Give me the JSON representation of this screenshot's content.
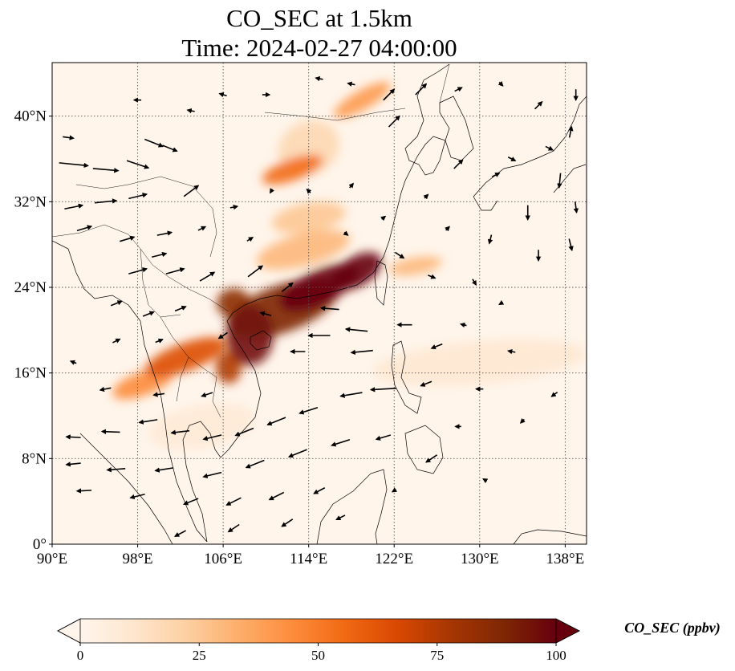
{
  "title": {
    "line1": "CO_SEC at 1.5km",
    "line2": "Time: 2024-02-27 04:00:00"
  },
  "map": {
    "lon_range": [
      90,
      140
    ],
    "lat_range": [
      0,
      40
    ],
    "lon_ticks": [
      {
        "value": 90,
        "label": "90°E"
      },
      {
        "value": 98,
        "label": "98°E"
      },
      {
        "value": 106,
        "label": "106°E"
      },
      {
        "value": 114,
        "label": "114°E"
      },
      {
        "value": 122,
        "label": "122°E"
      },
      {
        "value": 130,
        "label": "130°E"
      },
      {
        "value": 138,
        "label": "138°E"
      }
    ],
    "lat_ticks": [
      {
        "value": 0,
        "label": "0°"
      },
      {
        "value": 8,
        "label": "8°N"
      },
      {
        "value": 16,
        "label": "16°N"
      },
      {
        "value": 24,
        "label": "24°N"
      },
      {
        "value": 32,
        "label": "32°N"
      },
      {
        "value": 40,
        "label": "40°N"
      }
    ],
    "gridlines": true,
    "concentration_plumes": [
      {
        "lon": 111.5,
        "lat": 22.0,
        "rx": 5.5,
        "ry": 2.2,
        "rot": -20,
        "value": 90
      },
      {
        "lon": 115.0,
        "lat": 24.0,
        "rx": 4.0,
        "ry": 1.6,
        "rot": -25,
        "value": 100
      },
      {
        "lon": 108.5,
        "lat": 19.5,
        "rx": 2.2,
        "ry": 2.8,
        "rot": 0,
        "value": 95
      },
      {
        "lon": 118.5,
        "lat": 25.5,
        "rx": 2.6,
        "ry": 1.4,
        "rot": -30,
        "value": 100
      },
      {
        "lon": 107.0,
        "lat": 22.5,
        "rx": 1.6,
        "ry": 1.4,
        "rot": 0,
        "value": 85
      },
      {
        "lon": 102.5,
        "lat": 17.5,
        "rx": 4.0,
        "ry": 1.3,
        "rot": -20,
        "value": 65
      },
      {
        "lon": 98.5,
        "lat": 15.0,
        "rx": 3.0,
        "ry": 1.1,
        "rot": -20,
        "value": 45
      },
      {
        "lon": 106.5,
        "lat": 16.5,
        "rx": 1.2,
        "ry": 1.5,
        "rot": 0,
        "value": 75
      },
      {
        "lon": 113.5,
        "lat": 27.5,
        "rx": 4.5,
        "ry": 1.5,
        "rot": -15,
        "value": 30
      },
      {
        "lon": 112.5,
        "lat": 35.0,
        "rx": 3.0,
        "ry": 1.0,
        "rot": -20,
        "value": 55
      },
      {
        "lon": 114.0,
        "lat": 30.5,
        "rx": 3.5,
        "ry": 1.4,
        "rot": -10,
        "value": 25
      },
      {
        "lon": 119.0,
        "lat": 41.5,
        "rx": 3.0,
        "ry": 0.9,
        "rot": -30,
        "value": 40
      },
      {
        "lon": 114.0,
        "lat": 37.0,
        "rx": 3.0,
        "ry": 2.5,
        "rot": -30,
        "value": 18
      },
      {
        "lon": 104.0,
        "lat": 11.0,
        "rx": 5.0,
        "ry": 2.0,
        "rot": -10,
        "value": 8
      },
      {
        "lon": 130.0,
        "lat": 17.0,
        "rx": 10.0,
        "ry": 2.0,
        "rot": -5,
        "value": 10
      },
      {
        "lon": 124.0,
        "lat": 26.0,
        "rx": 2.5,
        "ry": 0.8,
        "rot": -10,
        "value": 30
      }
    ],
    "wind_vectors": [
      {
        "lon": 91.5,
        "lat": 38.0,
        "u": 1.5,
        "v": -0.2
      },
      {
        "lon": 92.0,
        "lat": 35.5,
        "u": 4.0,
        "v": -0.4
      },
      {
        "lon": 95.0,
        "lat": 35.0,
        "u": 3.5,
        "v": -0.3
      },
      {
        "lon": 98.0,
        "lat": 35.5,
        "u": 3.0,
        "v": -1.0
      },
      {
        "lon": 99.5,
        "lat": 37.5,
        "u": 2.5,
        "v": -1.0
      },
      {
        "lon": 101.0,
        "lat": 37.0,
        "u": 2.0,
        "v": -0.8
      },
      {
        "lon": 103.0,
        "lat": 33.0,
        "u": 2.0,
        "v": 1.5
      },
      {
        "lon": 92.0,
        "lat": 31.5,
        "u": 2.5,
        "v": 0.5
      },
      {
        "lon": 95.0,
        "lat": 32.0,
        "u": 3.0,
        "v": 0.3
      },
      {
        "lon": 98.0,
        "lat": 32.5,
        "u": 2.5,
        "v": 0.6
      },
      {
        "lon": 93.0,
        "lat": 29.5,
        "u": 2.0,
        "v": 0.6
      },
      {
        "lon": 97.0,
        "lat": 28.5,
        "u": 2.0,
        "v": 0.6
      },
      {
        "lon": 100.5,
        "lat": 29.0,
        "u": 2.0,
        "v": 0.4
      },
      {
        "lon": 98.0,
        "lat": 25.5,
        "u": 2.5,
        "v": 0.7
      },
      {
        "lon": 101.5,
        "lat": 25.5,
        "u": 2.5,
        "v": 0.7
      },
      {
        "lon": 104.5,
        "lat": 25.0,
        "u": 2.0,
        "v": 1.2
      },
      {
        "lon": 100.0,
        "lat": 27.0,
        "u": 2.0,
        "v": 0.5
      },
      {
        "lon": 109.0,
        "lat": 25.5,
        "u": 2.0,
        "v": 1.5
      },
      {
        "lon": 96.0,
        "lat": 22.5,
        "u": 1.5,
        "v": 0.6
      },
      {
        "lon": 99.0,
        "lat": 21.5,
        "u": 1.5,
        "v": 0.6
      },
      {
        "lon": 102.0,
        "lat": 22.0,
        "u": 1.5,
        "v": 0.6
      },
      {
        "lon": 112.0,
        "lat": 24.0,
        "u": 1.5,
        "v": 1.2
      },
      {
        "lon": 116.0,
        "lat": 22.0,
        "u": -2.5,
        "v": 0.2
      },
      {
        "lon": 115.0,
        "lat": 19.5,
        "u": -3.0,
        "v": 0.0
      },
      {
        "lon": 118.5,
        "lat": 20.0,
        "u": -3.0,
        "v": 0.3
      },
      {
        "lon": 119.0,
        "lat": 18.0,
        "u": -3.0,
        "v": -0.3
      },
      {
        "lon": 113.0,
        "lat": 18.0,
        "u": -2.0,
        "v": 0.0
      },
      {
        "lon": 121.0,
        "lat": 14.5,
        "u": -3.5,
        "v": -0.2
      },
      {
        "lon": 118.0,
        "lat": 14.0,
        "u": -3.0,
        "v": -0.5
      },
      {
        "lon": 114.0,
        "lat": 12.5,
        "u": -2.5,
        "v": -0.8
      },
      {
        "lon": 111.0,
        "lat": 11.5,
        "u": -2.5,
        "v": -1.0
      },
      {
        "lon": 108.0,
        "lat": 10.5,
        "u": -2.5,
        "v": -1.0
      },
      {
        "lon": 105.0,
        "lat": 10.0,
        "u": -2.5,
        "v": -0.6
      },
      {
        "lon": 102.0,
        "lat": 10.5,
        "u": -2.5,
        "v": -0.3
      },
      {
        "lon": 99.0,
        "lat": 11.5,
        "u": -2.5,
        "v": -0.4
      },
      {
        "lon": 95.5,
        "lat": 10.5,
        "u": -2.5,
        "v": 0.1
      },
      {
        "lon": 92.0,
        "lat": 10.0,
        "u": -2.0,
        "v": 0.1
      },
      {
        "lon": 92.0,
        "lat": 7.5,
        "u": -2.0,
        "v": -0.2
      },
      {
        "lon": 96.0,
        "lat": 7.0,
        "u": -2.5,
        "v": -0.2
      },
      {
        "lon": 100.5,
        "lat": 7.0,
        "u": -2.5,
        "v": -0.4
      },
      {
        "lon": 105.0,
        "lat": 6.5,
        "u": -2.5,
        "v": -0.6
      },
      {
        "lon": 109.0,
        "lat": 7.5,
        "u": -2.5,
        "v": -1.0
      },
      {
        "lon": 113.0,
        "lat": 8.5,
        "u": -2.5,
        "v": -1.0
      },
      {
        "lon": 117.0,
        "lat": 9.5,
        "u": -2.5,
        "v": -0.8
      },
      {
        "lon": 121.0,
        "lat": 10.0,
        "u": -2.0,
        "v": -0.6
      },
      {
        "lon": 125.5,
        "lat": 8.0,
        "u": -1.5,
        "v": -1.0
      },
      {
        "lon": 93.0,
        "lat": 5.0,
        "u": -2.0,
        "v": -0.1
      },
      {
        "lon": 98.0,
        "lat": 4.5,
        "u": -2.0,
        "v": -0.5
      },
      {
        "lon": 103.0,
        "lat": 4.0,
        "u": -2.0,
        "v": -0.8
      },
      {
        "lon": 107.0,
        "lat": 4.0,
        "u": -2.0,
        "v": -1.0
      },
      {
        "lon": 111.0,
        "lat": 4.5,
        "u": -2.0,
        "v": -1.0
      },
      {
        "lon": 115.0,
        "lat": 5.0,
        "u": -1.5,
        "v": -0.8
      },
      {
        "lon": 102.0,
        "lat": 1.0,
        "u": -1.5,
        "v": -0.8
      },
      {
        "lon": 107.0,
        "lat": 1.5,
        "u": -1.5,
        "v": -1.0
      },
      {
        "lon": 112.0,
        "lat": 2.0,
        "u": -1.5,
        "v": -1.0
      },
      {
        "lon": 117.0,
        "lat": 2.5,
        "u": -1.2,
        "v": -0.6
      },
      {
        "lon": 125.0,
        "lat": 15.0,
        "u": -1.5,
        "v": -0.6
      },
      {
        "lon": 126.0,
        "lat": 18.5,
        "u": -1.5,
        "v": -0.6
      },
      {
        "lon": 123.0,
        "lat": 20.5,
        "u": -2.0,
        "v": 0.0
      },
      {
        "lon": 121.5,
        "lat": 42.0,
        "u": 1.5,
        "v": 1.5
      },
      {
        "lon": 124.5,
        "lat": 42.5,
        "u": 1.5,
        "v": 1.5
      },
      {
        "lon": 122.0,
        "lat": 39.5,
        "u": 1.5,
        "v": 1.5
      },
      {
        "lon": 118.0,
        "lat": 43.0,
        "u": -1.0,
        "v": 0.2
      },
      {
        "lon": 115.0,
        "lat": 43.5,
        "u": -1.0,
        "v": 0.2
      },
      {
        "lon": 110.0,
        "lat": 42.0,
        "u": 1.0,
        "v": 0.0
      },
      {
        "lon": 106.0,
        "lat": 42.0,
        "u": -1.0,
        "v": 0.3
      },
      {
        "lon": 103.0,
        "lat": 40.5,
        "u": -1.0,
        "v": 0.2
      },
      {
        "lon": 98.0,
        "lat": 41.5,
        "u": -1.0,
        "v": 0.0
      },
      {
        "lon": 128.0,
        "lat": 42.5,
        "u": 1.0,
        "v": 0.5
      },
      {
        "lon": 132.0,
        "lat": 43.0,
        "u": 0.5,
        "v": -0.5
      },
      {
        "lon": 135.5,
        "lat": 41.0,
        "u": 1.0,
        "v": 1.0
      },
      {
        "lon": 139.0,
        "lat": 42.0,
        "u": 0.0,
        "v": -1.5
      },
      {
        "lon": 138.5,
        "lat": 38.5,
        "u": 0.3,
        "v": 1.5
      },
      {
        "lon": 137.5,
        "lat": 34.0,
        "u": -0.2,
        "v": -2.0
      },
      {
        "lon": 139.0,
        "lat": 31.5,
        "u": 0.2,
        "v": -1.5
      },
      {
        "lon": 134.5,
        "lat": 31.0,
        "u": 0.0,
        "v": -2.0
      },
      {
        "lon": 135.5,
        "lat": 27.0,
        "u": 0.0,
        "v": -1.5
      },
      {
        "lon": 138.5,
        "lat": 28.0,
        "u": 0.4,
        "v": -1.6
      },
      {
        "lon": 131.0,
        "lat": 28.5,
        "u": -0.3,
        "v": -1.2
      },
      {
        "lon": 127.0,
        "lat": 29.5,
        "u": 0.5,
        "v": 0.5
      },
      {
        "lon": 125.0,
        "lat": 32.5,
        "u": 0.5,
        "v": 0.5
      },
      {
        "lon": 128.0,
        "lat": 35.5,
        "u": 1.2,
        "v": 1.2
      },
      {
        "lon": 131.5,
        "lat": 34.5,
        "u": 1.0,
        "v": 0.5
      },
      {
        "lon": 133.0,
        "lat": 36.0,
        "u": 1.0,
        "v": -0.5
      },
      {
        "lon": 136.5,
        "lat": 37.0,
        "u": 1.0,
        "v": -0.5
      },
      {
        "lon": 118.0,
        "lat": 33.5,
        "u": 0.5,
        "v": 0.6
      },
      {
        "lon": 114.0,
        "lat": 33.0,
        "u": -0.5,
        "v": 0.5
      },
      {
        "lon": 110.5,
        "lat": 33.0,
        "u": -0.3,
        "v": -0.5
      },
      {
        "lon": 107.0,
        "lat": 31.5,
        "u": 1.0,
        "v": 0.2
      },
      {
        "lon": 117.5,
        "lat": 29.0,
        "u": 0.5,
        "v": -0.4
      },
      {
        "lon": 121.0,
        "lat": 30.5,
        "u": 0.5,
        "v": 0.4
      },
      {
        "lon": 122.5,
        "lat": 27.0,
        "u": 1.2,
        "v": -0.8
      },
      {
        "lon": 125.5,
        "lat": 25.0,
        "u": 1.0,
        "v": -0.4
      },
      {
        "lon": 129.5,
        "lat": 24.5,
        "u": 0.5,
        "v": -0.8
      },
      {
        "lon": 132.0,
        "lat": 22.5,
        "u": -0.5,
        "v": -0.3
      },
      {
        "lon": 128.5,
        "lat": 20.5,
        "u": -0.8,
        "v": 0.2
      },
      {
        "lon": 133.0,
        "lat": 18.0,
        "u": -1.0,
        "v": 0.2
      },
      {
        "lon": 130.0,
        "lat": 14.5,
        "u": -1.0,
        "v": 0.0
      },
      {
        "lon": 137.0,
        "lat": 14.0,
        "u": -0.8,
        "v": -0.6
      },
      {
        "lon": 134.0,
        "lat": 11.5,
        "u": -0.5,
        "v": -0.5
      },
      {
        "lon": 128.0,
        "lat": 11.0,
        "u": -0.8,
        "v": 0.0
      },
      {
        "lon": 130.5,
        "lat": 6.0,
        "u": -0.5,
        "v": 0.3
      },
      {
        "lon": 122.0,
        "lat": 5.0,
        "u": -0.5,
        "v": -0.3
      },
      {
        "lon": 108.5,
        "lat": 28.5,
        "u": 0.8,
        "v": 0.5
      },
      {
        "lon": 104.0,
        "lat": 29.5,
        "u": 1.0,
        "v": 0.5
      },
      {
        "lon": 110.0,
        "lat": 21.5,
        "u": -1.5,
        "v": 0.4
      },
      {
        "lon": 106.0,
        "lat": 19.5,
        "u": -1.2,
        "v": -0.8
      },
      {
        "lon": 104.5,
        "lat": 14.0,
        "u": -1.5,
        "v": -0.5
      },
      {
        "lon": 100.0,
        "lat": 14.0,
        "u": -1.5,
        "v": -0.2
      },
      {
        "lon": 95.0,
        "lat": 14.5,
        "u": -1.5,
        "v": -0.3
      },
      {
        "lon": 92.0,
        "lat": 17.0,
        "u": -0.8,
        "v": 0.3
      },
      {
        "lon": 96.0,
        "lat": 19.0,
        "u": 1.0,
        "v": 0.5
      },
      {
        "lon": 100.0,
        "lat": 19.0,
        "u": 1.0,
        "v": 0.4
      }
    ],
    "background_color": "#fff5eb"
  },
  "colorbar": {
    "label": "CO_SEC (ppbv)",
    "min": 0,
    "max": 100,
    "ticks": [
      {
        "value": 0,
        "label": "0"
      },
      {
        "value": 25,
        "label": "25"
      },
      {
        "value": 50,
        "label": "50"
      },
      {
        "value": 75,
        "label": "75"
      },
      {
        "value": 100,
        "label": "100"
      }
    ],
    "colormap": "OrRd",
    "stops": [
      "#fff5eb",
      "#fee6ce",
      "#fdd0a2",
      "#fdae6b",
      "#fd8d3c",
      "#f16913",
      "#d94801",
      "#a63603",
      "#7f2704",
      "#67000d"
    ]
  }
}
